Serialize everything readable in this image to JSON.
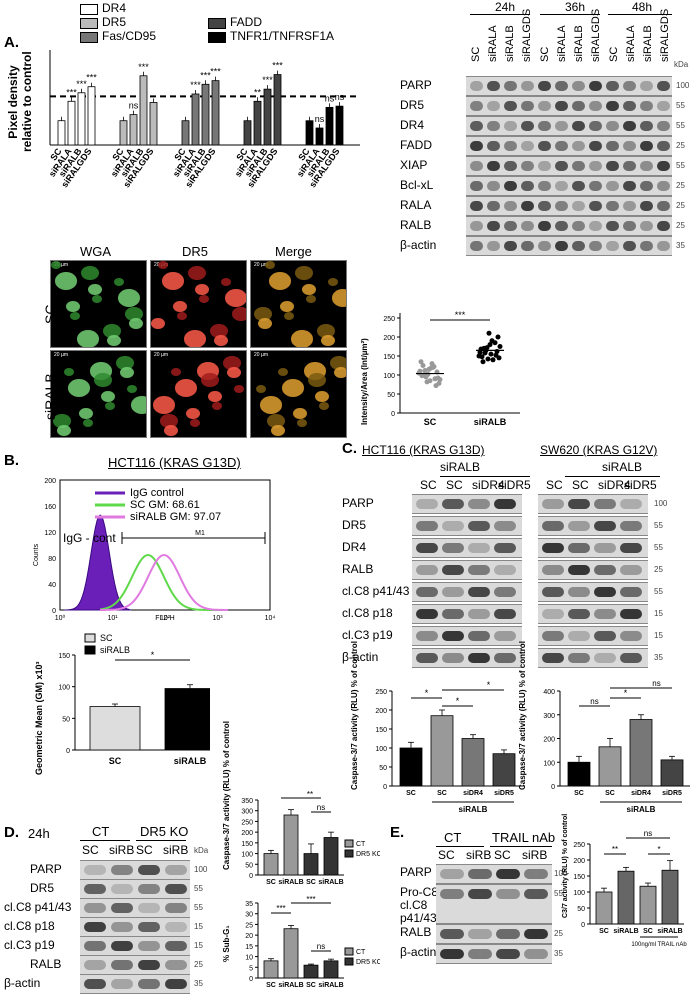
{
  "panelA": {
    "letter": "A.",
    "legend": [
      "DR4",
      "DR5",
      "Fas/CD95",
      "FADD",
      "TNFR1/TNFRSF1A"
    ],
    "ylabel_line1": "Pixel density",
    "ylabel_line2": "relative to control",
    "xlabels": [
      "SC",
      "siRALA",
      "siRALB",
      "siRALGDS"
    ],
    "sig": {
      "dr4": [
        "***",
        "***",
        "***"
      ],
      "dr5": [
        "ns",
        "***",
        ""
      ],
      "fas": [
        "***",
        "***",
        "***"
      ],
      "fadd": [
        "**",
        "***",
        "***"
      ],
      "tnfr": [
        "ns",
        "ns",
        "ns"
      ]
    },
    "timepoints": [
      "24h",
      "36h",
      "48h"
    ],
    "lanes": [
      "SC",
      "siRALA",
      "siRALB",
      "siRALGDS"
    ],
    "blots": [
      "PARP",
      "DR5",
      "DR4",
      "FADD",
      "XIAP",
      "Bcl-xL",
      "RALA",
      "RALB",
      "β-actin"
    ],
    "kda_header": "kDa",
    "kda": [
      "100",
      "55",
      "55",
      "25",
      "55",
      "25",
      "25",
      "25",
      "35"
    ],
    "micro_cols": [
      "WGA",
      "DR5",
      "Merge"
    ],
    "micro_rows": [
      "SC",
      "siRALB"
    ],
    "scale_bar": "20 µm",
    "scatter_ylabel": "Intensity/Area (Int/µm²)",
    "scatter_x": [
      "SC",
      "siRALB"
    ],
    "scatter_sig": "***"
  },
  "panelB": {
    "letter": "B.",
    "title": "HCT116 (KRAS G13D)",
    "legend": [
      "IgG control",
      "SC GM: 68.61",
      "siRALB GM: 97.07"
    ],
    "igg_label": "IgG - cont",
    "m1": "M1",
    "yaxis": "Counts",
    "xaxis": "FL2-H",
    "yticks": [
      "0",
      "40",
      "80",
      "120",
      "160",
      "200"
    ],
    "xticks": [
      "10⁰",
      "10¹",
      "10²",
      "10³",
      "10⁴"
    ],
    "bar_legend": [
      "SC",
      "siRALB"
    ],
    "bar_ylabel": "Geometric Mean (GM) x10³",
    "bar_yticks": [
      "0",
      "50",
      "100",
      "150"
    ],
    "bar_x": [
      "SC",
      "siRALB"
    ],
    "bar_sig": "*"
  },
  "panelC": {
    "letter": "C.",
    "left_title": "HCT116 (KRAS G13D)",
    "right_title": "SW620 (KRAS G12V)",
    "group": "siRALB",
    "left_lanes": [
      "SC",
      "SC",
      "siDR4",
      "siDR5"
    ],
    "right_lanes": [
      "SC",
      "SC",
      "siDR4",
      "siDR5"
    ],
    "blots": [
      "PARP",
      "DR5",
      "DR4",
      "RALB",
      "cl.C8 p41/43",
      "cl.C8 p18",
      "cl.C3 p19",
      "β-actin"
    ],
    "kda": [
      "100",
      "55",
      "55",
      "25",
      "55",
      "15",
      "15",
      "35"
    ],
    "chart_ylabel": "Caspase-3/7 activity (RLU) % of control",
    "left_yticks": [
      "0",
      "50",
      "100",
      "150",
      "200",
      "250"
    ],
    "right_yticks": [
      "0",
      "100",
      "200",
      "300",
      "400"
    ],
    "left_sig": [
      "*",
      "*",
      "*"
    ],
    "right_sig": [
      "ns",
      "*",
      "ns"
    ],
    "chart_x": [
      "SC",
      "SC",
      "siDR4",
      "siDR5"
    ],
    "chart_group": "siRALB"
  },
  "panelD": {
    "letter": "D.",
    "time": "24h",
    "groups": [
      "CT",
      "DR5 KO"
    ],
    "lanes": [
      "SC",
      "siRB",
      "SC",
      "siRB"
    ],
    "kda_header": "kDa",
    "blots": [
      "PARP",
      "DR5",
      "cl.C8 p41/43",
      "cl.C8 p18",
      "cl.C3 p19",
      "RALB",
      "β-actin"
    ],
    "kda": [
      "100",
      "55",
      "55",
      "15",
      "15",
      "25",
      "35"
    ],
    "chart1_ylabel": "Caspase-3/7 activity (RLU) % of control",
    "chart1_yticks": [
      "0",
      "50",
      "100",
      "150",
      "200",
      "250",
      "300",
      "350"
    ],
    "chart1_sig": [
      "**",
      "ns"
    ],
    "chart2_ylabel": "% Sub-G₁",
    "chart2_yticks": [
      "0",
      "5",
      "10",
      "15",
      "20",
      "25",
      "30",
      "35"
    ],
    "chart2_sig": [
      "***",
      "***",
      "ns"
    ],
    "legend": [
      "CT",
      "DR5 KO"
    ],
    "chart_x": [
      "SC",
      "siRALB",
      "SC",
      "siRALB"
    ]
  },
  "panelE": {
    "letter": "E.",
    "groups": [
      "CT",
      "TRAIL nAb"
    ],
    "lanes": [
      "SC",
      "siRB",
      "SC",
      "siRB"
    ],
    "blots": [
      "PARP",
      "Pro-C8",
      "cl.C8",
      "p41/43",
      "RALB",
      "β-actin"
    ],
    "kda": [
      "100",
      "55",
      "25",
      "35"
    ],
    "chart_ylabel": "C3/7 activity (RLU) % of control",
    "chart_yticks": [
      "0",
      "50",
      "100",
      "150",
      "200",
      "250"
    ],
    "chart_sig": [
      "**",
      "*",
      "ns"
    ],
    "chart_x": [
      "SC",
      "siRALB",
      "SC",
      "siRALB"
    ],
    "chart_note": "100ng/ml TRAIL nAb"
  },
  "chart_data": [
    {
      "type": "bar",
      "title": "",
      "ylabel": "Pixel density relative to control",
      "categories": [
        "SC",
        "siRALA",
        "siRALB",
        "siRALGDS"
      ],
      "ylim": [
        0,
        3.5
      ],
      "series": [
        {
          "name": "DR4",
          "values": [
            1.0,
            1.8,
            2.15,
            2.4
          ]
        },
        {
          "name": "DR5",
          "values": [
            1.0,
            1.25,
            2.85,
            1.75
          ]
        },
        {
          "name": "Fas/CD95",
          "values": [
            1.0,
            2.1,
            2.5,
            2.65
          ]
        },
        {
          "name": "FADD",
          "values": [
            1.0,
            1.8,
            2.3,
            2.9
          ]
        },
        {
          "name": "TNFR1/TNFRSF1A",
          "values": [
            1.0,
            0.7,
            1.55,
            1.6
          ]
        }
      ]
    },
    {
      "type": "scatter",
      "ylabel": "Intensity/Area (Int/µm²)",
      "categories": [
        "SC",
        "siRALB"
      ],
      "series": [
        {
          "values": [
            105,
            95,
            120,
            88,
            112,
            130,
            78,
            100,
            118,
            92,
            125,
            85,
            108,
            98,
            115,
            72,
            135,
            102,
            90,
            110,
            82,
            122
          ]
        },
        {
          "values": [
            150,
            165,
            140,
            175,
            158,
            190,
            145,
            170,
            155,
            200,
            135,
            180,
            162,
            148,
            210,
            152,
            168,
            142,
            185,
            160,
            172
          ]
        }
      ]
    },
    {
      "type": "bar",
      "ylabel": "Geometric Mean (GM) x10³",
      "categories": [
        "SC",
        "siRALB"
      ],
      "values": [
        68.61,
        97.07
      ],
      "ylim": [
        0,
        150
      ]
    },
    {
      "type": "bar",
      "ylabel": "Caspase-3/7 activity (RLU) % of control",
      "categories": [
        "SC",
        "SC",
        "siDR4",
        "siDR5"
      ],
      "values": [
        100,
        185,
        125,
        85
      ],
      "ylim": [
        0,
        250
      ]
    },
    {
      "type": "bar",
      "ylabel": "Caspase-3/7 activity (RLU) % of control",
      "categories": [
        "SC",
        "SC",
        "siDR4",
        "siDR5"
      ],
      "values": [
        100,
        165,
        280,
        110
      ],
      "ylim": [
        0,
        400
      ]
    },
    {
      "type": "bar",
      "ylabel": "Caspase-3/7 activity (RLU) % of control",
      "categories": [
        "SC",
        "siRALB",
        "SC",
        "siRALB"
      ],
      "series": [
        {
          "name": "CT",
          "values": [
            100,
            280,
            null,
            null
          ]
        },
        {
          "name": "DR5 KO",
          "values": [
            null,
            null,
            100,
            175
          ]
        }
      ],
      "ylim": [
        0,
        350
      ]
    },
    {
      "type": "bar",
      "ylabel": "% Sub-G₁",
      "categories": [
        "SC",
        "siRALB",
        "SC",
        "siRALB"
      ],
      "series": [
        {
          "name": "CT",
          "values": [
            8,
            23,
            null,
            null
          ]
        },
        {
          "name": "DR5 KO",
          "values": [
            null,
            null,
            6,
            8
          ]
        }
      ],
      "ylim": [
        0,
        35
      ]
    },
    {
      "type": "bar",
      "ylabel": "C3/7 activity (RLU) % of control",
      "categories": [
        "SC",
        "siRALB",
        "SC",
        "siRALB"
      ],
      "values": [
        100,
        165,
        118,
        168
      ],
      "ylim": [
        0,
        250
      ]
    }
  ]
}
